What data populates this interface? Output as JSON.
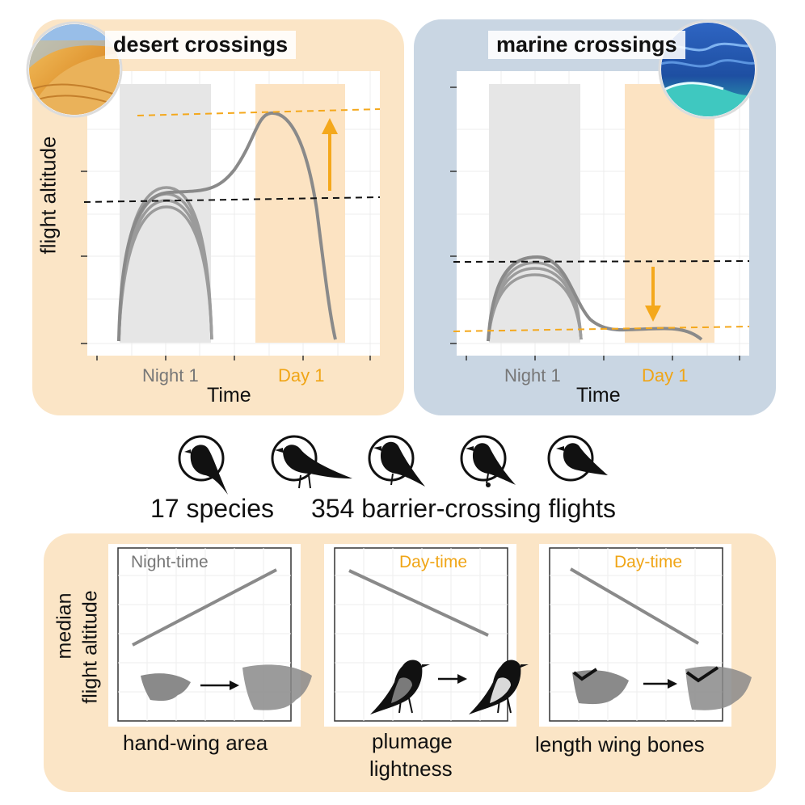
{
  "colors": {
    "desert_panel": "#fbe5c6",
    "marine_panel": "#c9d6e3",
    "bottom_panel": "#fbe5c6",
    "night_band": "#e6e6e6",
    "day_band": "#fce3c2",
    "curve": "#8a8a8a",
    "accent_orange": "#f4a81c",
    "dashed_black": "#111111",
    "night_text": "#777777",
    "day_text": "#f0a516"
  },
  "top": {
    "desert": {
      "title": "desert crossings",
      "ylabel": "flight altitude",
      "xlabel": "Time",
      "night_label": "Night 1",
      "day_label": "Day 1",
      "image": "sand-dunes-photo"
    },
    "marine": {
      "title": "marine crossings",
      "xlabel": "Time",
      "night_label": "Night 1",
      "day_label": "Day 1",
      "image": "ocean-waves-photo"
    }
  },
  "middle": {
    "species_text": "17 species",
    "flights_text": "354 barrier-crossing flights",
    "bird_icons": [
      "bird-icon-1",
      "bird-icon-2",
      "bird-icon-3",
      "bird-icon-4",
      "bird-icon-5"
    ]
  },
  "bottom": {
    "ylabel_line1": "median",
    "ylabel_line2": "flight altitude",
    "panels": [
      {
        "tag": "Night-time",
        "caption": "hand-wing area",
        "trend": "increasing",
        "icon": "wing-area-icon"
      },
      {
        "tag": "Day-time",
        "caption_line1": "plumage",
        "caption_line2": "lightness",
        "trend": "decreasing",
        "icon": "plumage-bird-icon"
      },
      {
        "tag": "Day-time",
        "caption": "length wing bones",
        "trend": "decreasing",
        "icon": "wing-bones-icon"
      }
    ]
  }
}
